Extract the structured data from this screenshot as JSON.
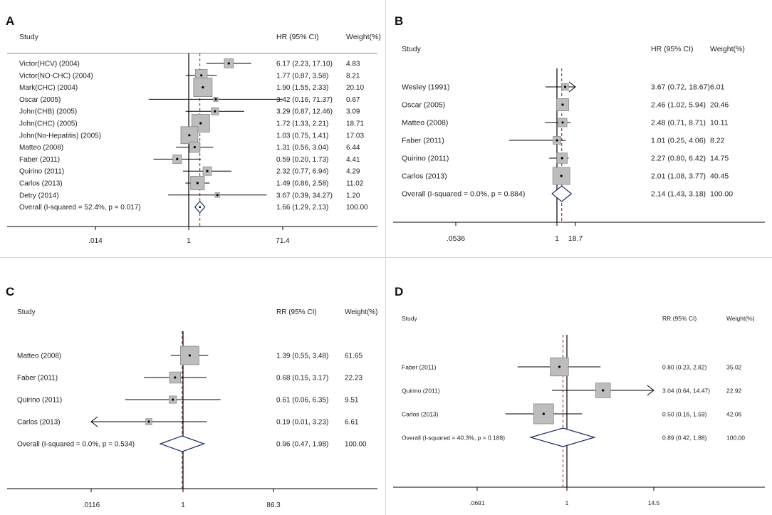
{
  "chart_data": [
    {
      "type": "forest",
      "panel_label": "A",
      "header": {
        "study": "Study",
        "estimate": "HR (95% CI)",
        "weight": "Weight(%)"
      },
      "scale": "log",
      "xlim": [
        0.014,
        71.4
      ],
      "ticks": [
        ".014",
        "1",
        "71.4"
      ],
      "tick_values": [
        0.014,
        1,
        71.4
      ],
      "studies": [
        {
          "label": "Victor(HCV) (2004)",
          "est": 6.17,
          "lo": 2.23,
          "hi": 17.1,
          "ci_text": "6.17 (2.23, 17.10)",
          "weight": 4.83,
          "weight_text": "4.83"
        },
        {
          "label": "Victor(NO-CHC) (2004)",
          "est": 1.77,
          "lo": 0.87,
          "hi": 3.58,
          "ci_text": "1.77 (0.87, 3.58)",
          "weight": 8.21,
          "weight_text": "8.21"
        },
        {
          "label": "Mark(CHC) (2004)",
          "est": 1.9,
          "lo": 1.55,
          "hi": 2.33,
          "ci_text": "1.90 (1.55, 2.33)",
          "weight": 20.1,
          "weight_text": "20.10"
        },
        {
          "label": "Oscar (2005)",
          "est": 3.42,
          "lo": 0.16,
          "hi": 71.37,
          "ci_text": "3.42 (0.16, 71.37)",
          "weight": 0.67,
          "weight_text": "0.67"
        },
        {
          "label": "John(CHB) (2005)",
          "est": 3.29,
          "lo": 0.87,
          "hi": 12.46,
          "ci_text": "3.29 (0.87, 12.46)",
          "weight": 3.09,
          "weight_text": "3.09"
        },
        {
          "label": "John(CHC) (2005)",
          "est": 1.72,
          "lo": 1.33,
          "hi": 2.21,
          "ci_text": "1.72 (1.33, 2.21)",
          "weight": 18.71,
          "weight_text": "18.71"
        },
        {
          "label": "John(No-Hepatitis) (2005)",
          "est": 1.03,
          "lo": 0.75,
          "hi": 1.41,
          "ci_text": "1.03 (0.75, 1.41)",
          "weight": 17.03,
          "weight_text": "17.03"
        },
        {
          "label": "Matteo (2008)",
          "est": 1.31,
          "lo": 0.56,
          "hi": 3.04,
          "ci_text": "1.31 (0.56, 3.04)",
          "weight": 6.44,
          "weight_text": "6.44"
        },
        {
          "label": "Faber (2011)",
          "est": 0.59,
          "lo": 0.2,
          "hi": 1.73,
          "ci_text": "0.59 (0.20, 1.73)",
          "weight": 4.41,
          "weight_text": "4.41"
        },
        {
          "label": "Quirino (2011)",
          "est": 2.32,
          "lo": 0.77,
          "hi": 6.94,
          "ci_text": "2.32 (0.77, 6.94)",
          "weight": 4.29,
          "weight_text": "4.29"
        },
        {
          "label": "Carlos (2013)",
          "est": 1.49,
          "lo": 0.86,
          "hi": 2.58,
          "ci_text": "1.49 (0.86, 2.58)",
          "weight": 11.02,
          "weight_text": "11.02"
        },
        {
          "label": "Detry (2014)",
          "est": 3.67,
          "lo": 0.39,
          "hi": 34.27,
          "ci_text": "3.67 (0.39, 34.27)",
          "weight": 1.2,
          "weight_text": "1.20"
        }
      ],
      "overall": {
        "label": "Overall  (I-squared = 52.4%, p = 0.017)",
        "est": 1.66,
        "lo": 1.29,
        "hi": 2.13,
        "ci_text": "1.66 (1.29, 2.13)",
        "weight_text": "100.00"
      }
    },
    {
      "type": "forest",
      "panel_label": "B",
      "header": {
        "study": "Study",
        "estimate": "HR (95% CI)",
        "weight": "Weight(%)"
      },
      "scale": "log",
      "xlim": [
        0.0536,
        18.7
      ],
      "ticks": [
        ".0536",
        "1",
        "18.7"
      ],
      "tick_values": [
        0.0536,
        1,
        18.7
      ],
      "studies": [
        {
          "label": "Wesley (1991)",
          "est": 3.67,
          "lo": 0.72,
          "hi": 18.67,
          "ci_text": "3.67 (0.72, 18.67)",
          "weight": 6.01,
          "weight_text": "6.01",
          "arrow_right": true
        },
        {
          "label": "Oscar (2005)",
          "est": 2.46,
          "lo": 1.02,
          "hi": 5.94,
          "ci_text": "2.46 (1.02, 5.94)",
          "weight": 20.46,
          "weight_text": "20.46"
        },
        {
          "label": "Matteo (2008)",
          "est": 2.48,
          "lo": 0.71,
          "hi": 8.71,
          "ci_text": "2.48 (0.71, 8.71)",
          "weight": 10.11,
          "weight_text": "10.11"
        },
        {
          "label": "Faber (2011)",
          "est": 1.01,
          "lo": 0.25,
          "hi": 4.06,
          "ci_text": "1.01 (0.25, 4.06)",
          "weight": 8.22,
          "weight_text": "8.22"
        },
        {
          "label": "Quirino (2011)",
          "est": 2.27,
          "lo": 0.8,
          "hi": 6.42,
          "ci_text": "2.27 (0.80, 6.42)",
          "weight": 14.75,
          "weight_text": "14.75"
        },
        {
          "label": "Carlos (2013)",
          "est": 2.01,
          "lo": 1.08,
          "hi": 3.77,
          "ci_text": "2.01 (1.08, 3.77)",
          "weight": 40.45,
          "weight_text": "40.45"
        }
      ],
      "overall": {
        "label": "Overall  (I-squared = 0.0%, p = 0.884)",
        "est": 2.14,
        "lo": 1.43,
        "hi": 3.18,
        "ci_text": "2.14 (1.43, 3.18)",
        "weight_text": "100.00"
      }
    },
    {
      "type": "forest",
      "panel_label": "C",
      "header": {
        "study": "Study",
        "estimate": "RR (95% CI)",
        "weight": "Weight(%)"
      },
      "scale": "log",
      "xlim": [
        0.0116,
        86.3
      ],
      "ticks": [
        ".0116",
        "1",
        "86.3"
      ],
      "tick_values": [
        0.0116,
        1,
        86.3
      ],
      "studies": [
        {
          "label": "Matteo (2008)",
          "est": 1.39,
          "lo": 0.55,
          "hi": 3.48,
          "ci_text": "1.39 (0.55, 3.48)",
          "weight": 61.65,
          "weight_text": "61.65"
        },
        {
          "label": "Faber (2011)",
          "est": 0.68,
          "lo": 0.15,
          "hi": 3.17,
          "ci_text": "0.68 (0.15, 3.17)",
          "weight": 22.23,
          "weight_text": "22.23"
        },
        {
          "label": "Quirino (2011)",
          "est": 0.61,
          "lo": 0.06,
          "hi": 6.35,
          "ci_text": "0.61 (0.06, 6.35)",
          "weight": 9.51,
          "weight_text": "9.51"
        },
        {
          "label": "Carlos (2013)",
          "est": 0.19,
          "lo": 0.01,
          "hi": 3.23,
          "ci_text": "0.19 (0.01, 3.23)",
          "weight": 6.61,
          "weight_text": "6.61",
          "arrow_left": true
        }
      ],
      "overall": {
        "label": "Overall  (I-squared = 0.0%, p = 0.534)",
        "est": 0.96,
        "lo": 0.47,
        "hi": 1.98,
        "ci_text": "0.96 (0.47, 1.98)",
        "weight_text": "100.00"
      }
    },
    {
      "type": "forest",
      "panel_label": "D",
      "header": {
        "study": "Study",
        "estimate": "RR (95% CI)",
        "weight": "Weight(%)"
      },
      "scale": "log",
      "xlim": [
        0.0691,
        14.5
      ],
      "ticks": [
        ".0691",
        "1",
        "14.5"
      ],
      "tick_values": [
        0.0691,
        1,
        14.5
      ],
      "studies": [
        {
          "label": "Faber (2011)",
          "est": 0.8,
          "lo": 0.23,
          "hi": 2.82,
          "ci_text": "0.80 (0.23, 2.82)",
          "weight": 35.02,
          "weight_text": "35.02"
        },
        {
          "label": "Quirino (2011)",
          "est": 3.04,
          "lo": 0.64,
          "hi": 14.47,
          "ci_text": "3.04 (0.64, 14.47)",
          "weight": 22.92,
          "weight_text": "22.92",
          "arrow_right": true
        },
        {
          "label": "Carlos (2013)",
          "est": 0.5,
          "lo": 0.16,
          "hi": 1.59,
          "ci_text": "0.50 (0.16, 1.59)",
          "weight": 42.06,
          "weight_text": "42.06"
        }
      ],
      "overall": {
        "label": "Overall  (I-squared = 40.3%, p = 0.188)",
        "est": 0.89,
        "lo": 0.42,
        "hi": 1.88,
        "ci_text": "0.89 (0.42, 1.88)",
        "weight_text": "100.00"
      }
    }
  ]
}
